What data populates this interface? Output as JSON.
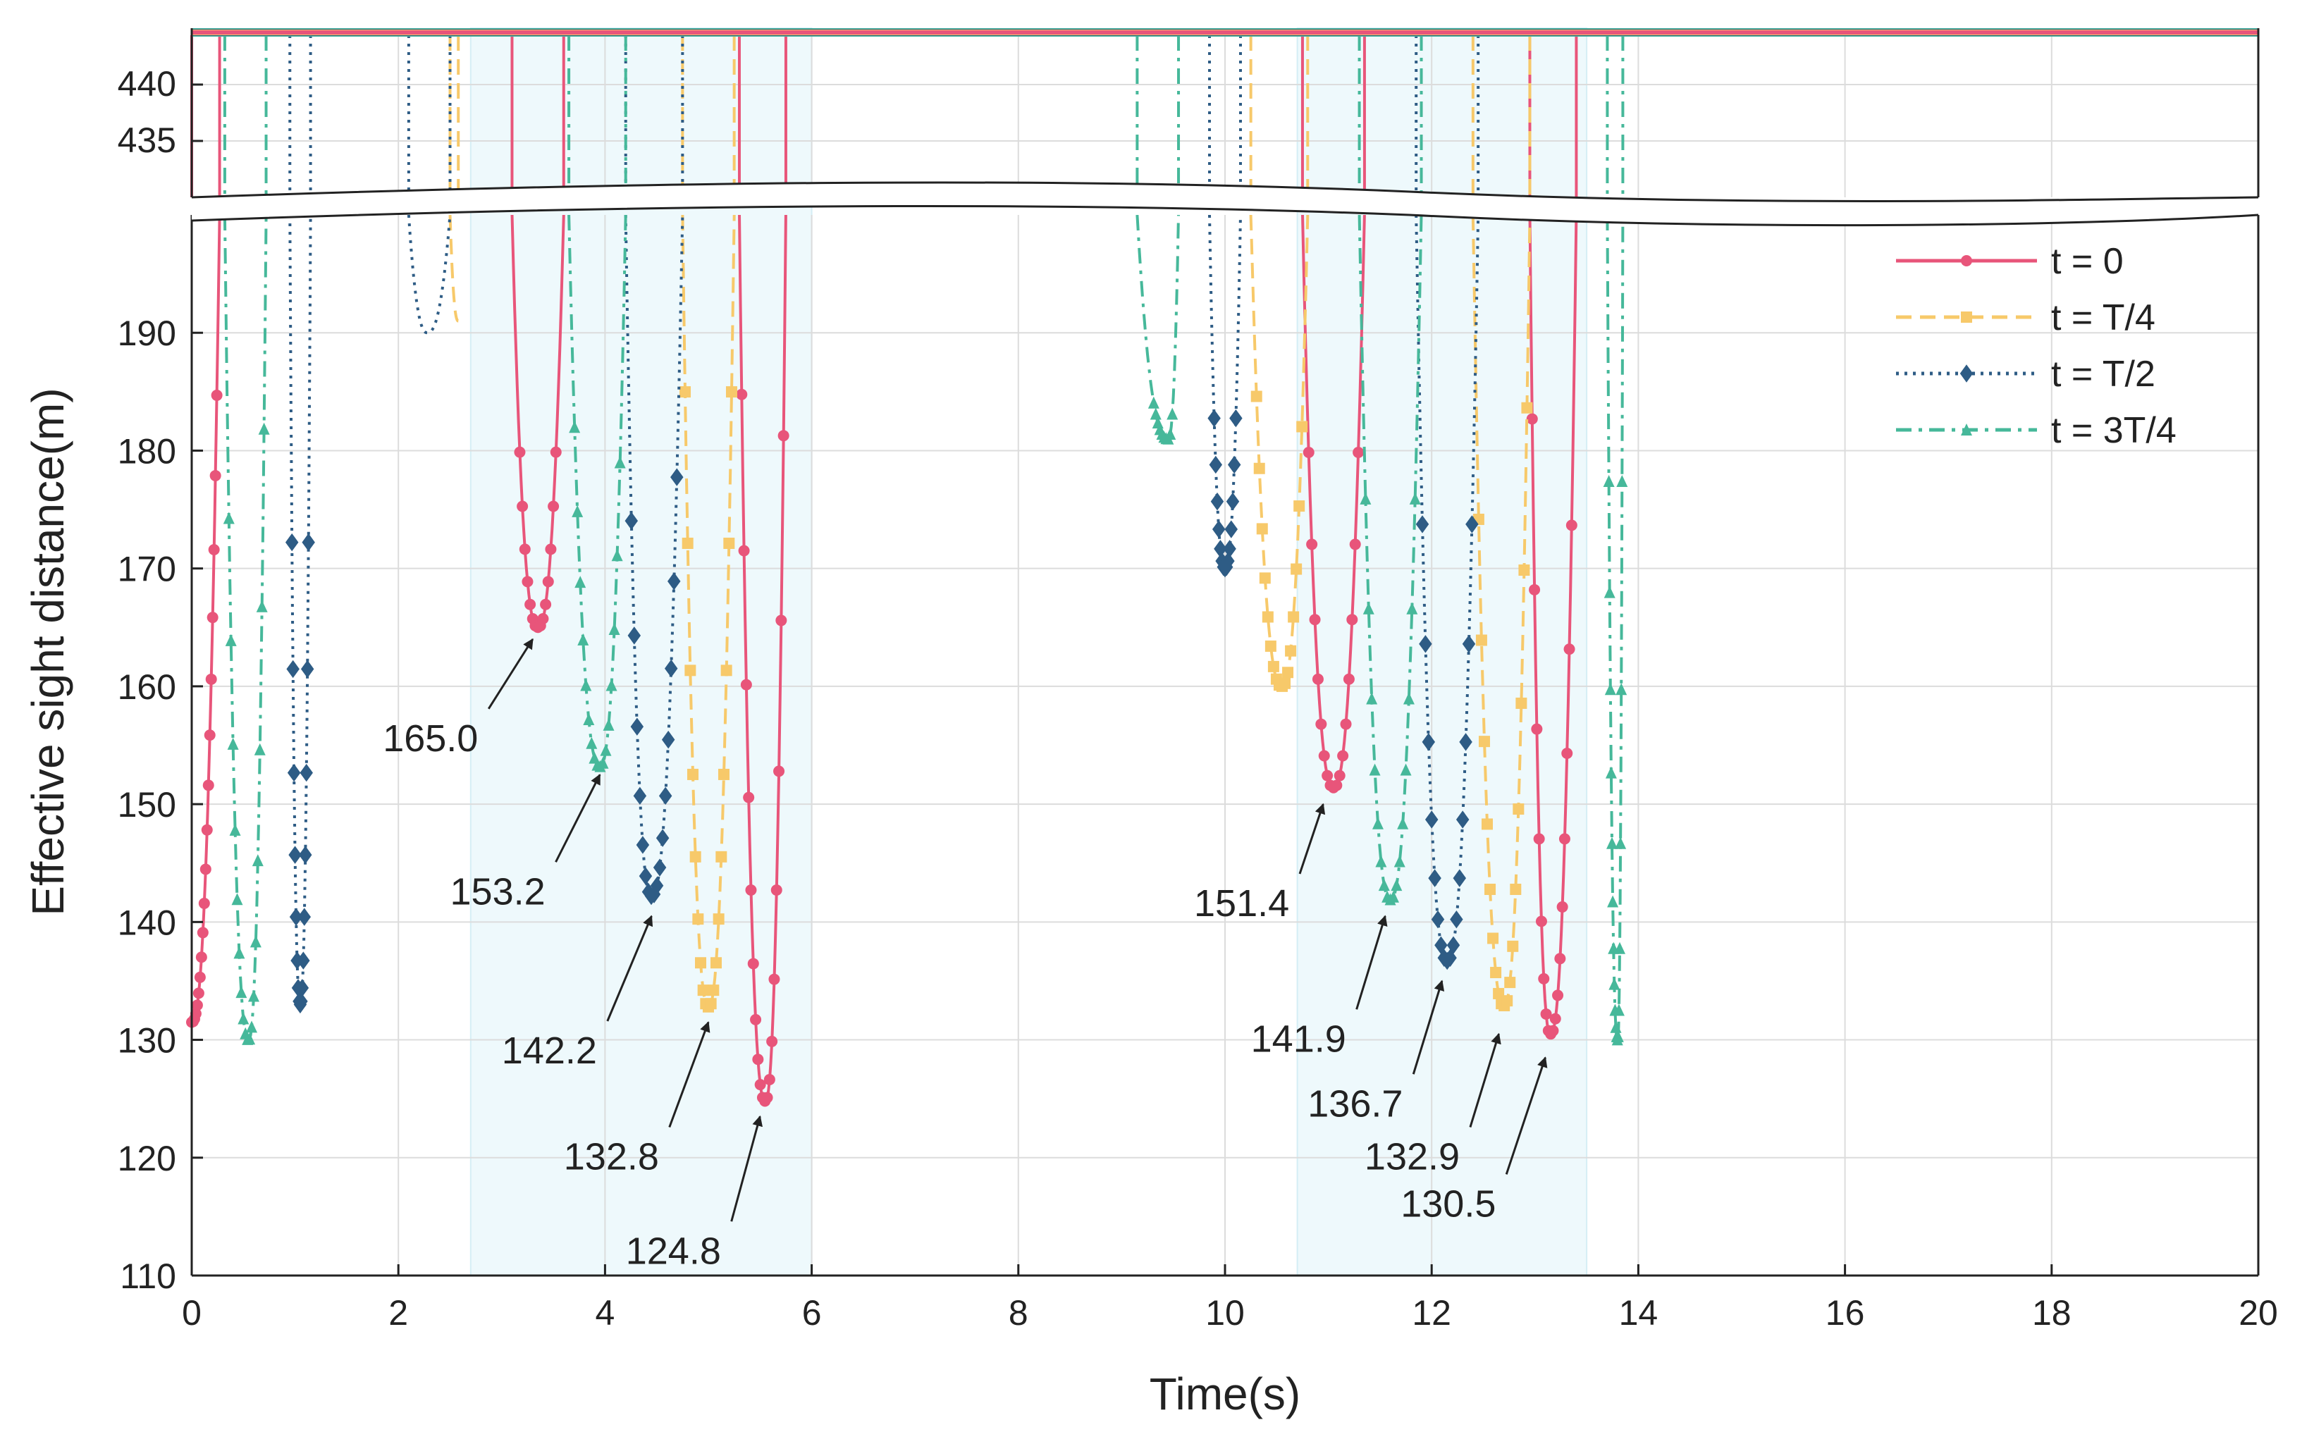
{
  "chart_data": {
    "type": "line",
    "title": "",
    "xlabel": "Time(s)",
    "ylabel": "Effective sight distance(m)",
    "xlim": [
      0,
      20
    ],
    "ylim_lower": [
      110,
      200
    ],
    "ylim_upper": [
      430,
      445
    ],
    "xticks": [
      "0",
      "2",
      "4",
      "6",
      "8",
      "10",
      "12",
      "14",
      "16",
      "18",
      "20"
    ],
    "yticks_lower": [
      "110",
      "120",
      "130",
      "140",
      "150",
      "160",
      "170",
      "180",
      "190"
    ],
    "yticks_upper": [
      "435",
      "440"
    ],
    "axis_break": "between 200 and 430 m",
    "grid": true,
    "legend_position": "top-right",
    "highlight_regions": [
      [
        2.7,
        6.0
      ],
      [
        10.7,
        13.5
      ]
    ],
    "series": [
      {
        "name": "t = 0",
        "color": "#e8557a",
        "style": "solid",
        "marker": "circle",
        "segments": [
          {
            "x0": 0.0,
            "x1": 0.27,
            "min_x": 0.0,
            "min_y": 131.5
          },
          {
            "x0": 3.1,
            "x1": 3.6,
            "min_x": 3.35,
            "min_y": 165.0
          },
          {
            "x0": 5.3,
            "x1": 5.75,
            "min_x": 5.55,
            "min_y": 124.8
          },
          {
            "x0": 10.75,
            "x1": 11.35,
            "min_x": 11.05,
            "min_y": 151.4
          },
          {
            "x0": 12.95,
            "x1": 13.4,
            "min_x": 13.15,
            "min_y": 130.5
          }
        ]
      },
      {
        "name": "t = T/4",
        "color": "#f7c96a",
        "style": "dashed",
        "marker": "square",
        "segments": [
          {
            "x0": 2.5,
            "x1": 2.58,
            "min_x": 2.58,
            "min_y": 191.0
          },
          {
            "x0": 4.75,
            "x1": 5.25,
            "min_x": 5.0,
            "min_y": 132.8
          },
          {
            "x0": 10.25,
            "x1": 10.8,
            "min_x": 10.55,
            "min_y": 160.0
          },
          {
            "x0": 12.4,
            "x1": 12.95,
            "min_x": 12.7,
            "min_y": 132.9
          }
        ]
      },
      {
        "name": "t = T/2",
        "color": "#2e5c85",
        "style": "dotted",
        "marker": "diamond",
        "segments": [
          {
            "x0": 0.95,
            "x1": 1.15,
            "min_x": 1.05,
            "min_y": 133.0
          },
          {
            "x0": 2.1,
            "x1": 2.5,
            "min_x": 2.28,
            "min_y": 190.0
          },
          {
            "x0": 4.2,
            "x1": 4.75,
            "min_x": 4.45,
            "min_y": 142.2
          },
          {
            "x0": 9.85,
            "x1": 10.15,
            "min_x": 10.0,
            "min_y": 170.0
          },
          {
            "x0": 11.85,
            "x1": 12.45,
            "min_x": 12.15,
            "min_y": 136.7
          }
        ]
      },
      {
        "name": "t = 3T/4",
        "color": "#46b89a",
        "style": "dashdot",
        "marker": "triangle",
        "segments": [
          {
            "x0": 0.32,
            "x1": 0.72,
            "min_x": 0.55,
            "min_y": 130.0
          },
          {
            "x0": 3.65,
            "x1": 4.2,
            "min_x": 3.95,
            "min_y": 153.2
          },
          {
            "x0": 9.15,
            "x1": 9.55,
            "min_x": 9.45,
            "min_y": 181.0
          },
          {
            "x0": 11.3,
            "x1": 11.9,
            "min_x": 11.6,
            "min_y": 141.9
          },
          {
            "x0": 13.7,
            "x1": 13.85,
            "min_x": 13.8,
            "min_y": 130.0
          }
        ]
      }
    ],
    "annotations": [
      {
        "label": "165.0",
        "x": 3.3,
        "y": 164.0,
        "text_x": 1.85,
        "text_y": 154.5
      },
      {
        "label": "153.2",
        "x": 3.95,
        "y": 152.5,
        "text_x": 2.5,
        "text_y": 141.5
      },
      {
        "label": "142.2",
        "x": 4.45,
        "y": 140.5,
        "text_x": 3.0,
        "text_y": 128.0
      },
      {
        "label": "132.8",
        "x": 5.0,
        "y": 131.5,
        "text_x": 3.6,
        "text_y": 119.0
      },
      {
        "label": "124.8",
        "x": 5.5,
        "y": 123.5,
        "text_x": 4.2,
        "text_y": 111.0
      },
      {
        "label": "151.4",
        "x": 10.95,
        "y": 150.0,
        "text_x": 9.7,
        "text_y": 140.5
      },
      {
        "label": "141.9",
        "x": 11.55,
        "y": 140.5,
        "text_x": 10.25,
        "text_y": 129.0
      },
      {
        "label": "136.7",
        "x": 12.1,
        "y": 135.0,
        "text_x": 10.8,
        "text_y": 123.5
      },
      {
        "label": "132.9",
        "x": 12.65,
        "y": 130.5,
        "text_x": 11.35,
        "text_y": 119.0
      },
      {
        "label": "130.5",
        "x": 13.1,
        "y": 128.5,
        "text_x": 11.7,
        "text_y": 115.0
      }
    ]
  }
}
